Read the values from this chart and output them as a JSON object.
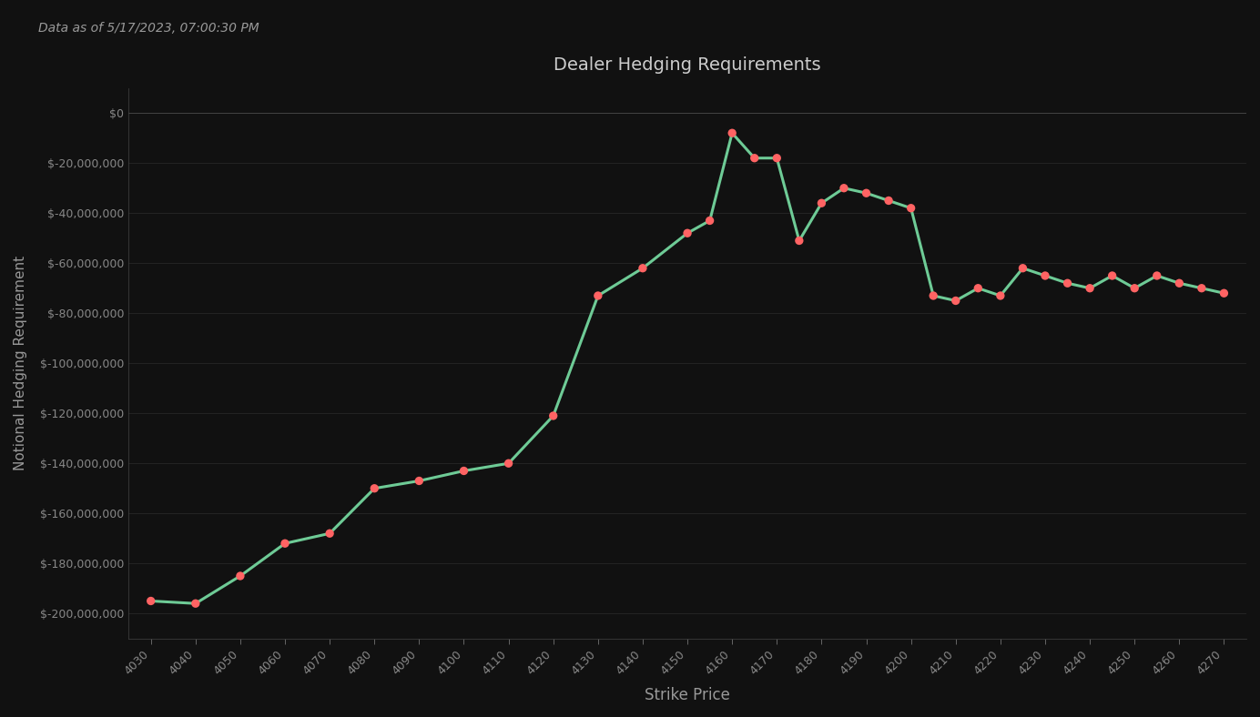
{
  "title": "Dealer Hedging Requirements",
  "subtitle": "Data as of 5/17/2023, 07:00:30 PM",
  "xlabel": "Strike Price",
  "ylabel": "Notional Hedging Requirement",
  "background_color": "#111111",
  "line_color": "#6ecb96",
  "marker_color": "#ff6363",
  "title_color": "#cccccc",
  "subtitle_color": "#999999",
  "label_color": "#999999",
  "tick_color": "#888888",
  "grid_color": "#2a2a2a",
  "strike_prices": [
    4030,
    4040,
    4050,
    4060,
    4070,
    4080,
    4090,
    4100,
    4110,
    4120,
    4130,
    4140,
    4150,
    4155,
    4160,
    4165,
    4170,
    4175,
    4180,
    4185,
    4190,
    4195,
    4200,
    4205,
    4210,
    4215,
    4220,
    4225,
    4230,
    4235,
    4240,
    4245,
    4250,
    4255,
    4260,
    4265,
    4270
  ],
  "values": [
    -195000000,
    -196000000,
    -185000000,
    -172000000,
    -168000000,
    -150000000,
    -147000000,
    -143000000,
    -140000000,
    -121000000,
    -73000000,
    -62000000,
    -48000000,
    -43000000,
    -8000000,
    -18000000,
    -18000000,
    -51000000,
    -36000000,
    -30000000,
    -32000000,
    -35000000,
    -38000000,
    -73000000,
    -75000000,
    -70000000,
    -73000000,
    -62000000,
    -65000000,
    -68000000,
    -70000000,
    -65000000,
    -70000000,
    -65000000,
    -68000000,
    -70000000,
    -72000000
  ],
  "ylim": [
    -210000000,
    10000000
  ],
  "yticks": [
    0,
    -20000000,
    -40000000,
    -60000000,
    -80000000,
    -100000000,
    -120000000,
    -140000000,
    -160000000,
    -180000000,
    -200000000
  ],
  "figsize": [
    13.84,
    7.88
  ],
  "dpi": 100
}
